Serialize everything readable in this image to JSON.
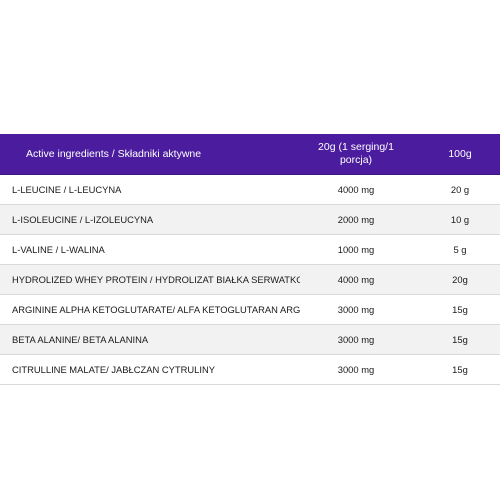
{
  "table": {
    "header": {
      "name": "Active ingredients / Składniki aktywne",
      "serving": "20g (1 serging/1 porcja)",
      "per100": "100g"
    },
    "rows": [
      {
        "name": "L-LEUCINE / L-LEUCYNA",
        "serving": "4000 mg",
        "per100": "20 g"
      },
      {
        "name": "L-ISOLEUCINE / L-IZOLEUCYNA",
        "serving": "2000 mg",
        "per100": "10 g"
      },
      {
        "name": "L-VALINE / L-WALINA",
        "serving": "1000 mg",
        "per100": "5 g"
      },
      {
        "name": "HYDROLIZED WHEY PROTEIN / HYDROLIZAT BIAŁKA SERWATKOWEGO",
        "serving": "4000 mg",
        "per100": "20g"
      },
      {
        "name": "ARGININE ALPHA KETOGLUTARATE/ ALFA KETOGLUTARAN ARGININY",
        "serving": "3000 mg",
        "per100": "15g"
      },
      {
        "name": "BETA ALANINE/ BETA ALANINA",
        "serving": "3000 mg",
        "per100": "15g"
      },
      {
        "name": "CITRULLINE MALATE/ JABŁCZAN CYTRULINY",
        "serving": "3000 mg",
        "per100": "15g"
      }
    ],
    "colors": {
      "header_bg": "#4b1d9e",
      "row_alt_bg": "#f2f2f2"
    }
  }
}
